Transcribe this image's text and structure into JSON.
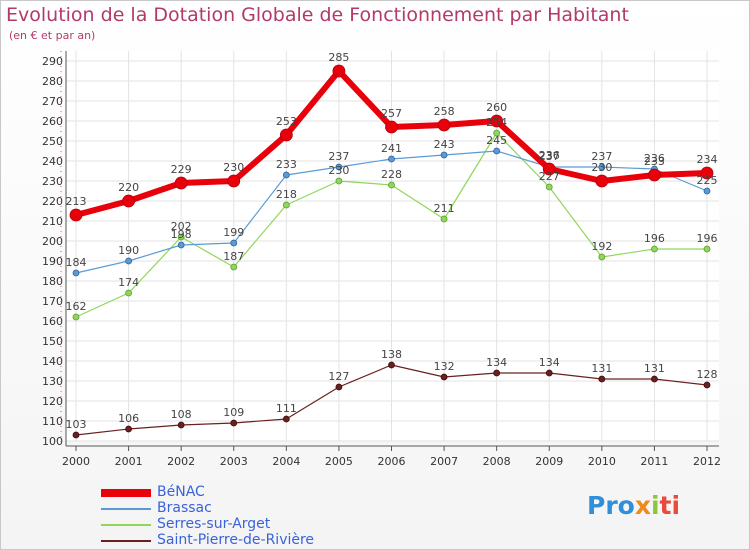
{
  "header": {
    "title": "Evolution de la Dotation Globale de Fonctionnement par Habitant",
    "subtitle": "(en € et par an)"
  },
  "logo": {
    "part1": "Pro",
    "part2": "x",
    "part3": "i",
    "part4": "ti"
  },
  "chart_data": {
    "type": "line",
    "title": "Evolution de la Dotation Globale de Fonctionnement par Habitant",
    "subtitle": "(en € et par an)",
    "xlabel": "",
    "ylabel": "",
    "x": [
      "2000",
      "2001",
      "2002",
      "2003",
      "2004",
      "2005",
      "2006",
      "2007",
      "2008",
      "2009",
      "2010",
      "2011",
      "2012"
    ],
    "ylim": [
      100,
      290
    ],
    "yticks": [
      100,
      110,
      120,
      130,
      140,
      150,
      160,
      170,
      180,
      190,
      200,
      210,
      220,
      230,
      240,
      250,
      260,
      270,
      280,
      290
    ],
    "grid": true,
    "legend_position": "bottom-left",
    "series": [
      {
        "name": "BéNAC",
        "color": "#e8000b",
        "values": [
          213,
          220,
          229,
          230,
          253,
          285,
          257,
          258,
          260,
          236,
          230,
          233,
          234
        ]
      },
      {
        "name": "Brassac",
        "color": "#5b9bd5",
        "values": [
          184,
          190,
          198,
          199,
          233,
          237,
          241,
          243,
          245,
          237,
          237,
          236,
          225
        ]
      },
      {
        "name": "Serres-sur-Arget",
        "color": "#8fd65a",
        "values": [
          162,
          174,
          202,
          187,
          218,
          230,
          228,
          211,
          254,
          227,
          192,
          196,
          196
        ]
      },
      {
        "name": "Saint-Pierre-de-Rivière",
        "color": "#6b2020",
        "values": [
          103,
          106,
          108,
          109,
          111,
          127,
          138,
          132,
          134,
          134,
          131,
          131,
          128
        ]
      }
    ]
  }
}
